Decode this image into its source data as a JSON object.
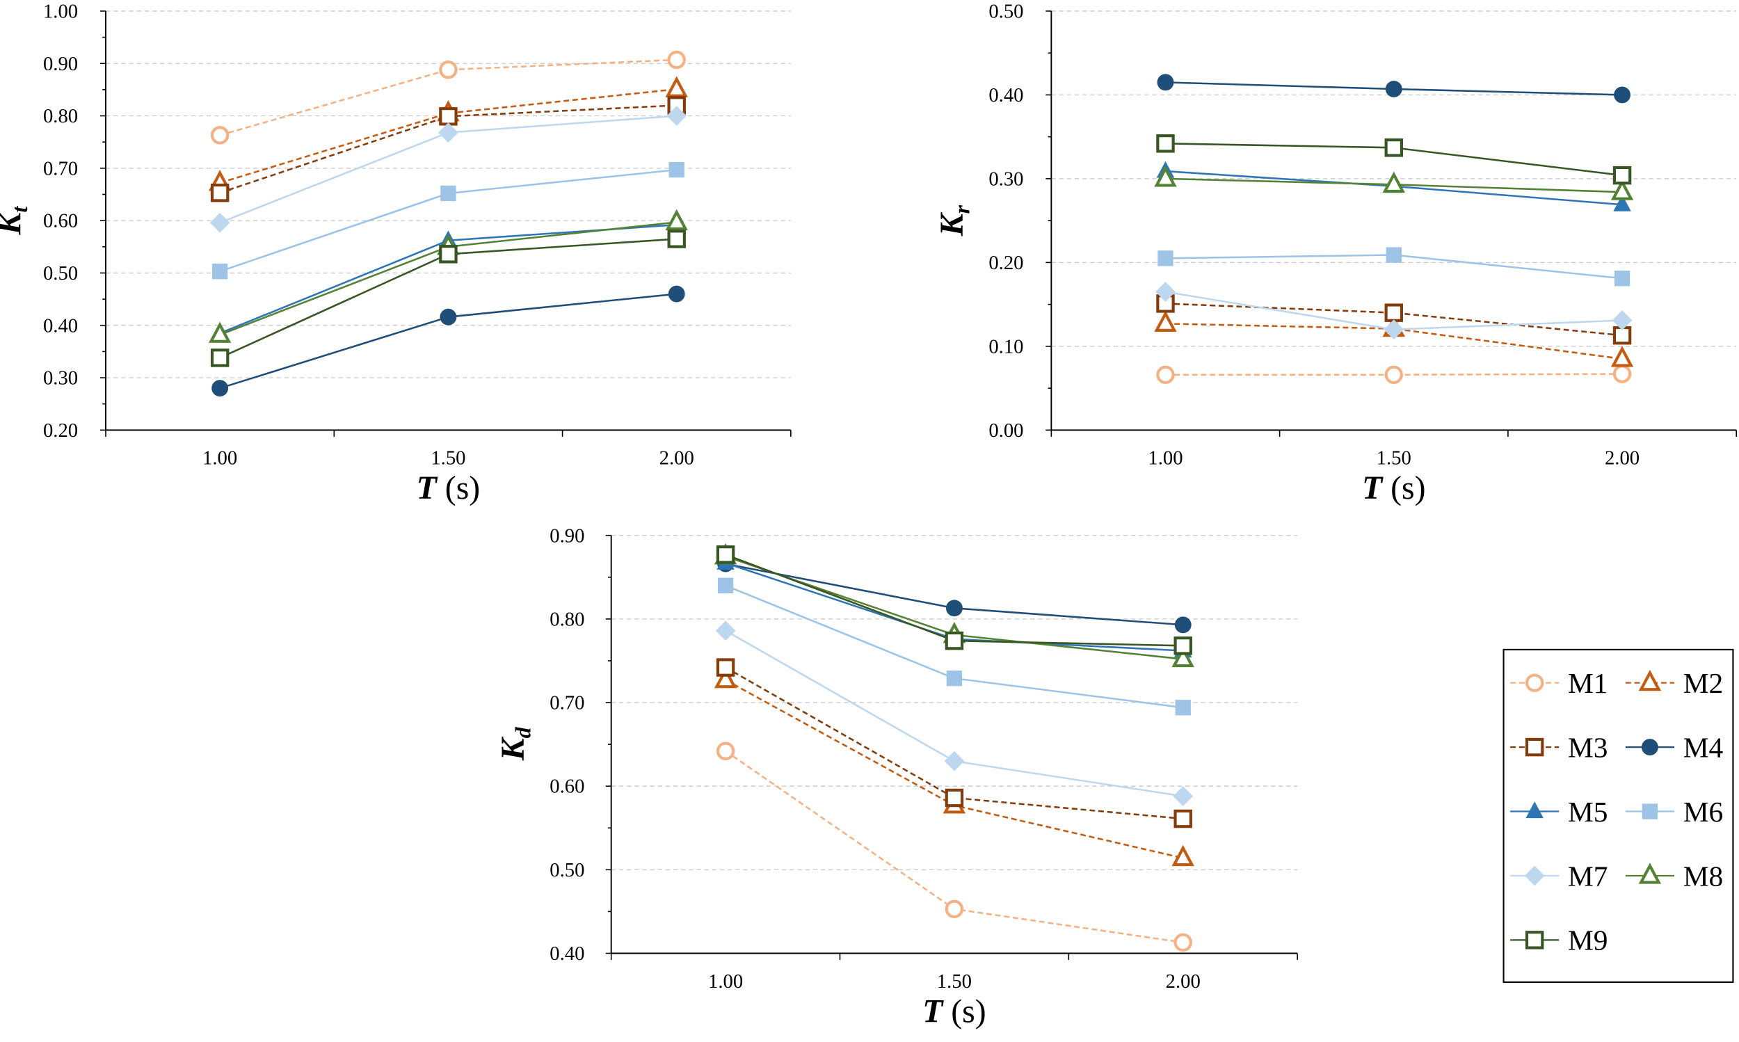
{
  "series_styles": [
    {
      "name": "M1",
      "color": "#F4B183",
      "dashed": true,
      "marker": "circle",
      "filled": false
    },
    {
      "name": "M2",
      "color": "#C55A11",
      "dashed": true,
      "marker": "triangle",
      "filled": false
    },
    {
      "name": "M3",
      "color": "#843C0C",
      "dashed": true,
      "marker": "square",
      "filled": false
    },
    {
      "name": "M4",
      "color": "#1F4E79",
      "dashed": false,
      "marker": "circle",
      "filled": true
    },
    {
      "name": "M5",
      "color": "#2E75B6",
      "dashed": false,
      "marker": "triangle",
      "filled": true
    },
    {
      "name": "M6",
      "color": "#9DC3E6",
      "dashed": false,
      "marker": "square",
      "filled": true
    },
    {
      "name": "M7",
      "color": "#BDD7EE",
      "dashed": false,
      "marker": "diamond",
      "filled": true
    },
    {
      "name": "M8",
      "color": "#548235",
      "dashed": false,
      "marker": "triangle",
      "filled": false
    },
    {
      "name": "M9",
      "color": "#375623",
      "dashed": false,
      "marker": "square",
      "filled": false
    }
  ],
  "chart_data": [
    {
      "type": "line",
      "id": "kt",
      "xlabel": "T",
      "xunit": " (s)",
      "ylabel": "K",
      "ysub": "t",
      "categories": [
        "1.00",
        "1.50",
        "2.00"
      ],
      "ylim": [
        0.2,
        1.0
      ],
      "ytick_step": 0.1,
      "grid": true,
      "series": [
        {
          "name": "M1",
          "values": [
            0.763,
            0.888,
            0.907
          ]
        },
        {
          "name": "M2",
          "values": [
            0.672,
            0.805,
            0.851
          ]
        },
        {
          "name": "M3",
          "values": [
            0.653,
            0.799,
            0.82
          ]
        },
        {
          "name": "M4",
          "values": [
            0.28,
            0.416,
            0.46
          ]
        },
        {
          "name": "M5",
          "values": [
            0.385,
            0.562,
            0.592
          ]
        },
        {
          "name": "M6",
          "values": [
            0.503,
            0.652,
            0.697
          ]
        },
        {
          "name": "M7",
          "values": [
            0.596,
            0.768,
            0.8
          ]
        },
        {
          "name": "M8",
          "values": [
            0.382,
            0.55,
            0.597
          ]
        },
        {
          "name": "M9",
          "values": [
            0.338,
            0.536,
            0.565
          ]
        }
      ]
    },
    {
      "type": "line",
      "id": "kr",
      "xlabel": "T",
      "xunit": " (s)",
      "ylabel": "K",
      "ysub": "r",
      "categories": [
        "1.00",
        "1.50",
        "2.00"
      ],
      "ylim": [
        0.0,
        0.5
      ],
      "ytick_step": 0.1,
      "grid": true,
      "series": [
        {
          "name": "M1",
          "values": [
            0.066,
            0.066,
            0.067
          ]
        },
        {
          "name": "M2",
          "values": [
            0.127,
            0.121,
            0.085
          ]
        },
        {
          "name": "M3",
          "values": [
            0.151,
            0.14,
            0.113
          ]
        },
        {
          "name": "M4",
          "values": [
            0.415,
            0.407,
            0.4
          ]
        },
        {
          "name": "M5",
          "values": [
            0.309,
            0.291,
            0.269
          ]
        },
        {
          "name": "M6",
          "values": [
            0.205,
            0.209,
            0.181
          ]
        },
        {
          "name": "M7",
          "values": [
            0.165,
            0.12,
            0.131
          ]
        },
        {
          "name": "M8",
          "values": [
            0.3,
            0.293,
            0.284
          ]
        },
        {
          "name": "M9",
          "values": [
            0.342,
            0.337,
            0.304
          ]
        }
      ]
    },
    {
      "type": "line",
      "id": "kd",
      "xlabel": "T",
      "xunit": " (s)",
      "ylabel": "K",
      "ysub": "d",
      "categories": [
        "1.00",
        "1.50",
        "2.00"
      ],
      "ylim": [
        0.4,
        0.9
      ],
      "ytick_step": 0.1,
      "grid": true,
      "series": [
        {
          "name": "M1",
          "values": [
            0.642,
            0.453,
            0.413
          ]
        },
        {
          "name": "M2",
          "values": [
            0.727,
            0.577,
            0.514
          ]
        },
        {
          "name": "M3",
          "values": [
            0.742,
            0.586,
            0.561
          ]
        },
        {
          "name": "M4",
          "values": [
            0.866,
            0.813,
            0.793
          ]
        },
        {
          "name": "M5",
          "values": [
            0.867,
            0.776,
            0.762
          ]
        },
        {
          "name": "M6",
          "values": [
            0.84,
            0.729,
            0.694
          ]
        },
        {
          "name": "M7",
          "values": [
            0.786,
            0.63,
            0.588
          ]
        },
        {
          "name": "M8",
          "values": [
            0.875,
            0.781,
            0.752
          ]
        },
        {
          "name": "M9",
          "values": [
            0.877,
            0.774,
            0.768
          ]
        }
      ]
    }
  ],
  "legend": {
    "placement": "bottom-right",
    "entries": [
      "M1",
      "M2",
      "M3",
      "M4",
      "M5",
      "M6",
      "M7",
      "M8",
      "M9"
    ]
  }
}
